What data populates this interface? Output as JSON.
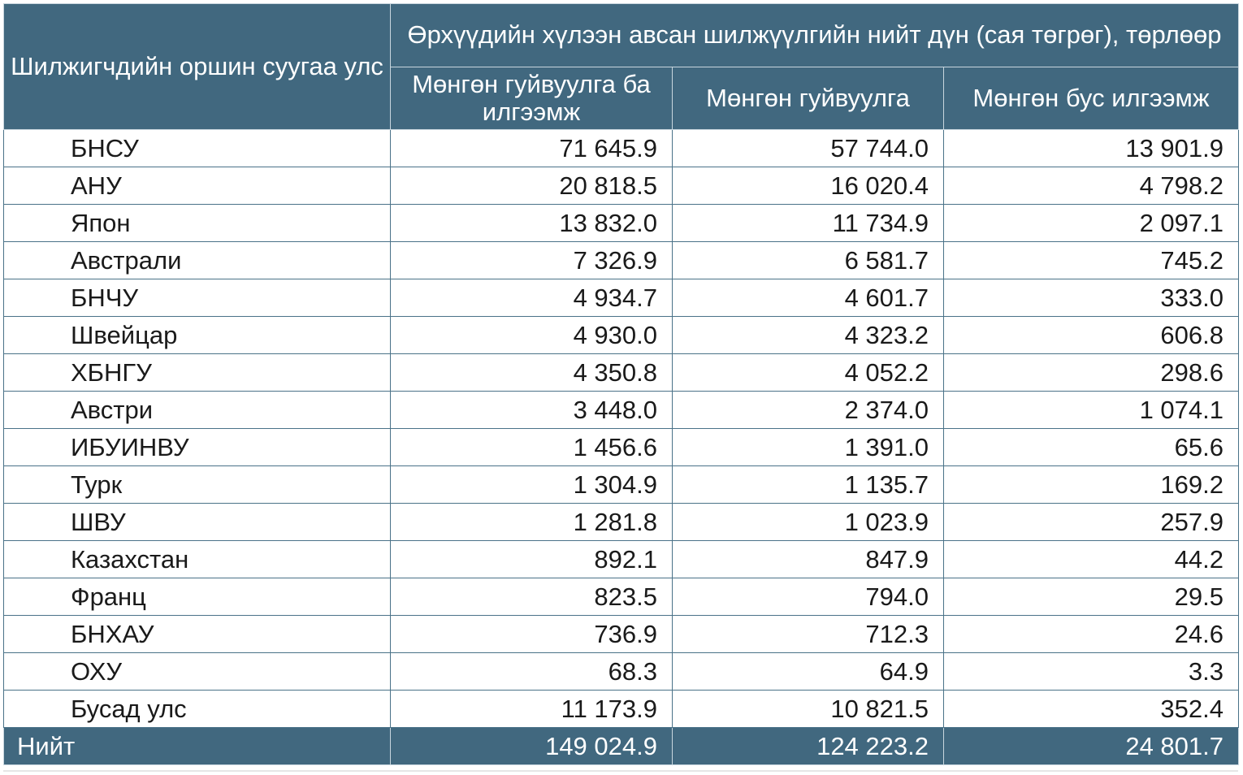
{
  "table": {
    "header": {
      "country_col": "Шилжигчдийн оршин суугаа улс",
      "group_title": "Өрхүүдийн хүлээн авсан шилжүүлгийн нийт дүн (сая төгрөг), төрлөөр",
      "columns": [
        "Мөнгөн гуйвуулга ба илгээмж",
        "Мөнгөн гуйвуулга",
        "Мөнгөн бус илгээмж"
      ]
    },
    "rows": [
      {
        "country": "БНСУ",
        "total": "71 645.9",
        "money": "57 744.0",
        "nonmoney": "13 901.9"
      },
      {
        "country": "АНУ",
        "total": "20 818.5",
        "money": "16 020.4",
        "nonmoney": "4 798.2"
      },
      {
        "country": "Япон",
        "total": "13 832.0",
        "money": "11 734.9",
        "nonmoney": "2 097.1"
      },
      {
        "country": "Австрали",
        "total": "7 326.9",
        "money": "6 581.7",
        "nonmoney": "745.2"
      },
      {
        "country": "БНЧУ",
        "total": "4 934.7",
        "money": "4 601.7",
        "nonmoney": "333.0"
      },
      {
        "country": "Швейцар",
        "total": "4 930.0",
        "money": "4 323.2",
        "nonmoney": "606.8"
      },
      {
        "country": "ХБНГУ",
        "total": "4 350.8",
        "money": "4 052.2",
        "nonmoney": "298.6"
      },
      {
        "country": "Австри",
        "total": "3 448.0",
        "money": "2 374.0",
        "nonmoney": "1 074.1"
      },
      {
        "country": "ИБУИНВУ",
        "total": "1 456.6",
        "money": "1 391.0",
        "nonmoney": "65.6"
      },
      {
        "country": "Турк",
        "total": "1 304.9",
        "money": "1 135.7",
        "nonmoney": "169.2"
      },
      {
        "country": "ШВУ",
        "total": "1 281.8",
        "money": "1 023.9",
        "nonmoney": "257.9"
      },
      {
        "country": "Казахстан",
        "total": "892.1",
        "money": "847.9",
        "nonmoney": "44.2"
      },
      {
        "country": "Франц",
        "total": "823.5",
        "money": "794.0",
        "nonmoney": "29.5"
      },
      {
        "country": "БНХАУ",
        "total": "736.9",
        "money": "712.3",
        "nonmoney": "24.6"
      },
      {
        "country": "ОХУ",
        "total": "68.3",
        "money": "64.9",
        "nonmoney": "3.3"
      },
      {
        "country": "Бусад улс",
        "total": "11 173.9",
        "money": "10 821.5",
        "nonmoney": "352.4"
      }
    ],
    "footer": {
      "label": "Нийт",
      "total": "149 024.9",
      "money": "124 223.2",
      "nonmoney": "24 801.7"
    },
    "colors": {
      "header_bg": "#41687f",
      "header_text": "#ffffff",
      "border": "#4a7288"
    }
  }
}
